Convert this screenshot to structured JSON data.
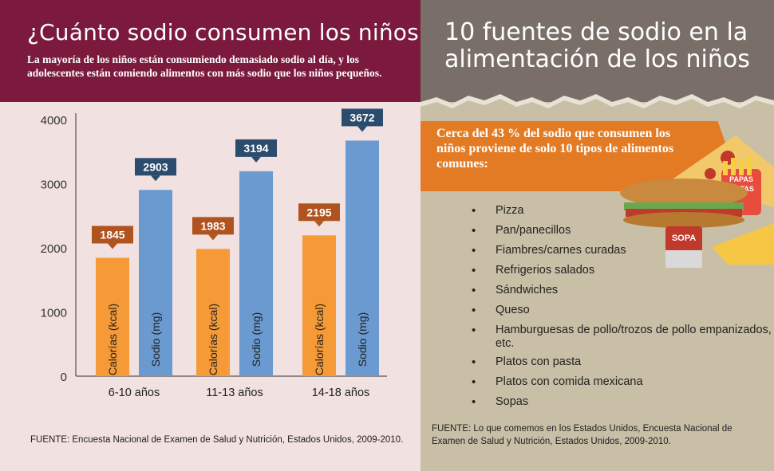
{
  "left": {
    "title": "¿Cuánto sodio consumen los niños?",
    "subtitle": "La mayoría de los niños están consumiendo demasiado sodio al día, y los adolescentes están comiendo alimentos con más sodio que los niños pequeños.",
    "source": "FUENTE: Encuesta Nacional de Examen de Salud y Nutrición, Estados Unidos, 2009-2010."
  },
  "right": {
    "title": "10 fuentes de sodio en la alimentación de los niños",
    "callout": "Cerca del 43 % del sodio que consumen los niños proviene de solo 10 tipos de alimentos comunes:",
    "foods": [
      "Pizza",
      "Pan/panecillos",
      "Fiambres/carnes curadas",
      "Refrigerios salados",
      "Sándwiches",
      "Queso",
      "Hamburguesas de pollo/trozos de pollo empanizados, etc.",
      "Platos con pasta",
      "Platos con comida mexicana",
      "Sopas"
    ],
    "source": "FUENTE: Lo que comemos en los Estados Unidos, Encuesta Nacional de Examen de Salud y Nutrición, Estados Unidos, 2009-2010.",
    "image_labels": {
      "fries": "PAPAS FRITAS",
      "soup": "SOPA"
    }
  },
  "colors": {
    "left_header": "#7b1a3c",
    "right_header": "#7a6f68",
    "calories": "#f59a36",
    "sodium": "#6a9ad0",
    "label_calories": "#b0531e",
    "label_sodium": "#2c4c6e",
    "callout": "#e37b24"
  },
  "chart_data": {
    "type": "bar",
    "categories": [
      "6-10 años",
      "11-13 años",
      "14-18 años"
    ],
    "series": [
      {
        "name": "Calorías (kcal)",
        "values": [
          1845,
          1983,
          2195
        ]
      },
      {
        "name": "Sodio (mg)",
        "values": [
          2903,
          3194,
          3672
        ]
      }
    ],
    "yticks": [
      0,
      1000,
      2000,
      3000,
      4000
    ],
    "ylim": [
      0,
      4000
    ],
    "title": "",
    "xlabel": "",
    "ylabel": ""
  }
}
